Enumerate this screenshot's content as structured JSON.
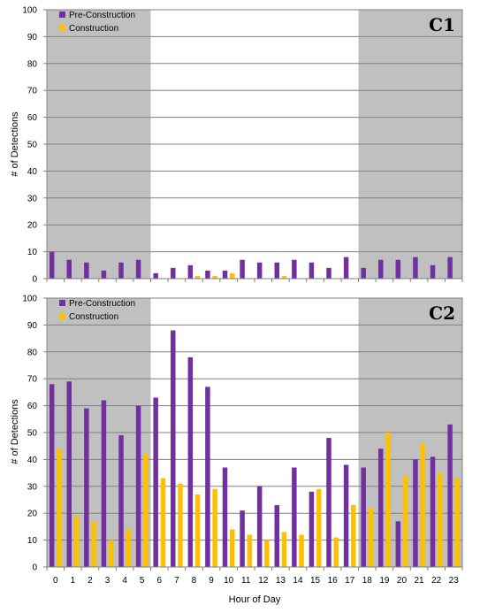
{
  "figure": {
    "xlabel": "Hour of Day",
    "ylabel": "# of Detections"
  },
  "colors": {
    "pre_construction": "#7030A0",
    "construction": "#FFC000",
    "night_shading": "#C0C0C0",
    "gridline": "#808080"
  },
  "chart_data": [
    {
      "type": "bar",
      "panel": "C1",
      "title": "C1",
      "categories": [
        "0",
        "1",
        "2",
        "3",
        "4",
        "5",
        "6",
        "7",
        "8",
        "9",
        "10",
        "11",
        "12",
        "13",
        "14",
        "15",
        "16",
        "17",
        "18",
        "19",
        "20",
        "21",
        "22",
        "23"
      ],
      "series": [
        {
          "name": "Pre-Construction",
          "values": [
            10,
            7,
            6,
            3,
            6,
            7,
            2,
            4,
            5,
            3,
            3,
            7,
            6,
            6,
            7,
            6,
            4,
            8,
            4,
            7,
            7,
            8,
            5,
            8
          ]
        },
        {
          "name": "Construction",
          "values": [
            0,
            0,
            0,
            0,
            0,
            0,
            0,
            0,
            1,
            1,
            2,
            0,
            0,
            1,
            0,
            0,
            0,
            0,
            0,
            0,
            0,
            0,
            0,
            0
          ]
        }
      ],
      "ylim": [
        0,
        100
      ],
      "yticks": [
        0,
        10,
        20,
        30,
        40,
        50,
        60,
        70,
        80,
        90,
        100
      ],
      "shaded_hours": [
        [
          0,
          5
        ],
        [
          18,
          23
        ]
      ],
      "grid": true,
      "legend_placement": "top-left"
    },
    {
      "type": "bar",
      "panel": "C2",
      "title": "C2",
      "categories": [
        "0",
        "1",
        "2",
        "3",
        "4",
        "5",
        "6",
        "7",
        "8",
        "9",
        "10",
        "11",
        "12",
        "13",
        "14",
        "15",
        "16",
        "17",
        "18",
        "19",
        "20",
        "21",
        "22",
        "23"
      ],
      "series": [
        {
          "name": "Pre-Construction",
          "values": [
            68,
            69,
            59,
            62,
            49,
            60,
            63,
            88,
            78,
            67,
            37,
            21,
            30,
            23,
            37,
            28,
            48,
            38,
            37,
            44,
            17,
            40,
            41,
            53
          ]
        },
        {
          "name": "Construction",
          "values": [
            44,
            19,
            17,
            10,
            14,
            42,
            33,
            31,
            27,
            29,
            14,
            12,
            10,
            13,
            12,
            29,
            11,
            23,
            22,
            50,
            34,
            46,
            35,
            33
          ]
        }
      ],
      "ylim": [
        0,
        100
      ],
      "yticks": [
        0,
        10,
        20,
        30,
        40,
        50,
        60,
        70,
        80,
        90,
        100
      ],
      "shaded_hours": [
        [
          0,
          5
        ],
        [
          18,
          23
        ]
      ],
      "grid": true,
      "legend_placement": "top-left"
    }
  ]
}
